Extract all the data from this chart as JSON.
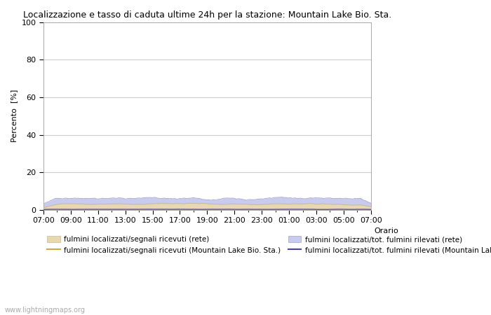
{
  "title": "Localizzazione e tasso di caduta ultime 24h per la stazione: Mountain Lake Bio. Sta.",
  "ylabel": "Percento  [%]",
  "xlabel_right": "Orario",
  "watermark": "www.lightningmaps.org",
  "ylim": [
    0,
    100
  ],
  "yticks": [
    0,
    20,
    40,
    60,
    80,
    100
  ],
  "x_tick_labels": [
    "07:00",
    "09:00",
    "11:00",
    "13:00",
    "15:00",
    "17:00",
    "19:00",
    "21:00",
    "23:00",
    "01:00",
    "03:00",
    "05:00",
    "07:00"
  ],
  "bg_color": "#ffffff",
  "plot_bg_color": "#ffffff",
  "grid_color": "#cccccc",
  "fill_rete_color": "#e8d8b0",
  "fill_tot_color": "#c8caee",
  "line_rete_color": "#ccaa44",
  "line_tot_color": "#4444aa",
  "legend_labels": [
    "fulmini localizzati/segnali ricevuti (rete)",
    "fulmini localizzati/segnali ricevuti (Mountain Lake Bio. Sta.)",
    "fulmini localizzati/tot. fulmini rilevati (rete)",
    "fulmini localizzati/tot. fulmini rilevati (Mountain Lake Bio. Sta.)"
  ]
}
